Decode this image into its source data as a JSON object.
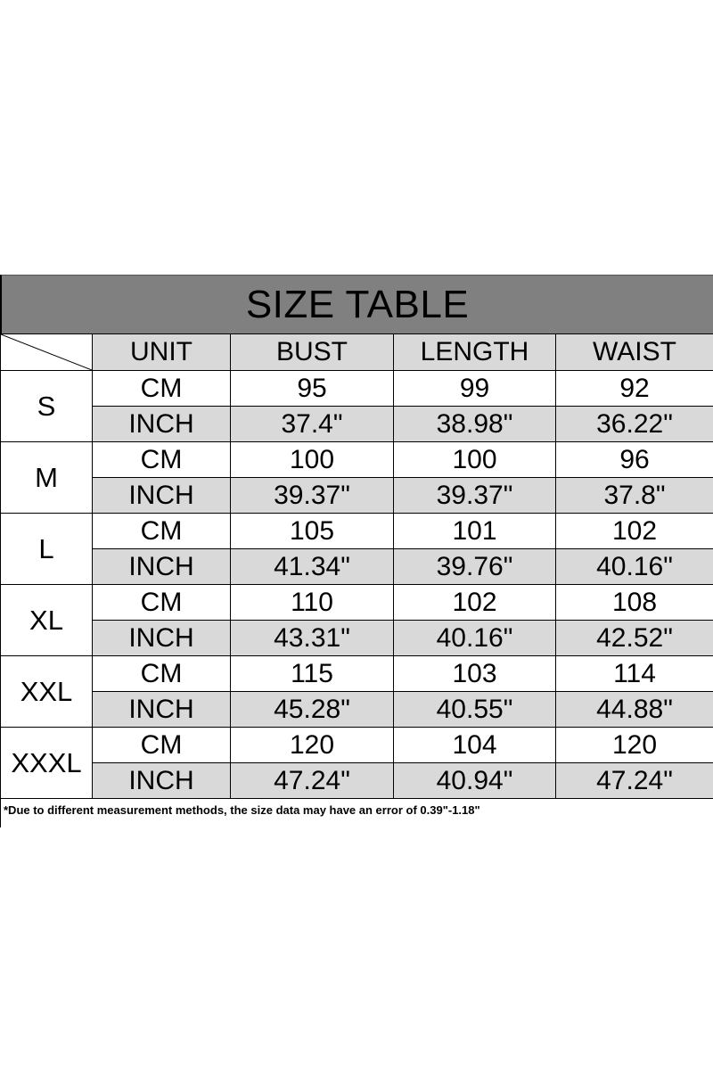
{
  "title": "SIZE TABLE",
  "headers": [
    "UNIT",
    "BUST",
    "LENGTH",
    "WAIST"
  ],
  "rows": [
    {
      "size": "S",
      "cm": [
        "CM",
        "95",
        "99",
        "92"
      ],
      "inch": [
        "INCH",
        "37.4\"",
        "38.98\"",
        "36.22\""
      ]
    },
    {
      "size": "M",
      "cm": [
        "CM",
        "100",
        "100",
        "96"
      ],
      "inch": [
        "INCH",
        "39.37\"",
        "39.37\"",
        "37.8\""
      ]
    },
    {
      "size": "L",
      "cm": [
        "CM",
        "105",
        "101",
        "102"
      ],
      "inch": [
        "INCH",
        "41.34\"",
        "39.76\"",
        "40.16\""
      ]
    },
    {
      "size": "XL",
      "cm": [
        "CM",
        "110",
        "102",
        "108"
      ],
      "inch": [
        "INCH",
        "43.31\"",
        "40.16\"",
        "42.52\""
      ]
    },
    {
      "size": "XXL",
      "cm": [
        "CM",
        "115",
        "103",
        "114"
      ],
      "inch": [
        "INCH",
        "45.28\"",
        "40.55\"",
        "44.88\""
      ]
    },
    {
      "size": "XXXL",
      "cm": [
        "CM",
        "120",
        "104",
        "120"
      ],
      "inch": [
        "INCH",
        "47.24\"",
        "40.94\"",
        "47.24\""
      ]
    }
  ],
  "note": "*Due to different measurement methods, the size data may have an error of 0.39\"-1.18\"",
  "colors": {
    "title_bg": "#808080",
    "cell_gray": "#d9d9d9"
  }
}
